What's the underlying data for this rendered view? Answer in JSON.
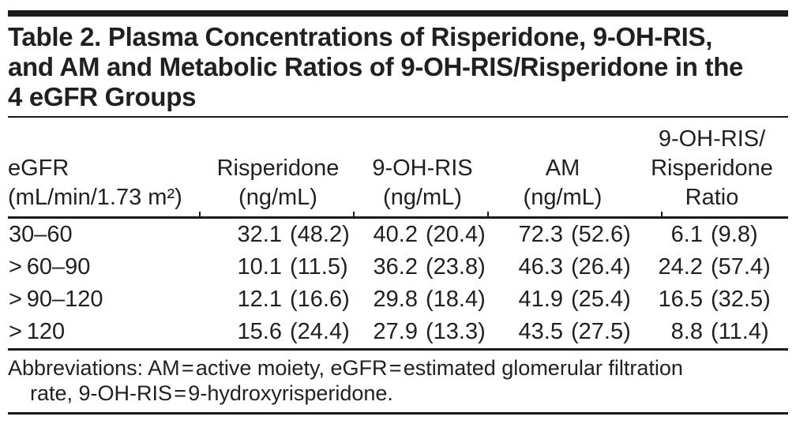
{
  "colors": {
    "background": "#ffffff",
    "text": "#231f20",
    "rule": "#1d1a19"
  },
  "title_lines": [
    "Table 2. Plasma Concentrations of Risperidone, 9-OH-RIS,",
    "and AM and Metabolic Ratios of 9-OH-RIS/Risperidone in the",
    "4 eGFR Groups"
  ],
  "table": {
    "columns": [
      {
        "header_lines": [
          "eGFR",
          "(mL/min/1.73 m²)"
        ]
      },
      {
        "header_lines": [
          "Risperidone",
          "(ng/mL)"
        ]
      },
      {
        "header_lines": [
          "9-OH-RIS",
          "(ng/mL)"
        ]
      },
      {
        "header_lines": [
          "AM",
          "(ng/mL)"
        ]
      },
      {
        "header_lines": [
          "9-OH-RIS/",
          "Risperidone",
          "Ratio"
        ]
      }
    ],
    "rows": [
      {
        "egfr": "30–60",
        "values": [
          {
            "mean": "32.1",
            "sd": "(48.2)"
          },
          {
            "mean": "40.2",
            "sd": "(20.4)"
          },
          {
            "mean": "72.3",
            "sd": "(52.6)"
          },
          {
            "mean": "6.1",
            "sd": "(9.8)"
          }
        ]
      },
      {
        "egfr": "> 60–90",
        "values": [
          {
            "mean": "10.1",
            "sd": "(11.5)"
          },
          {
            "mean": "36.2",
            "sd": "(23.8)"
          },
          {
            "mean": "46.3",
            "sd": "(26.4)"
          },
          {
            "mean": "24.2",
            "sd": "(57.4)"
          }
        ]
      },
      {
        "egfr": "> 90–120",
        "values": [
          {
            "mean": "12.1",
            "sd": "(16.6)"
          },
          {
            "mean": "29.8",
            "sd": "(18.4)"
          },
          {
            "mean": "41.9",
            "sd": "(25.4)"
          },
          {
            "mean": "16.5",
            "sd": "(32.5)"
          }
        ]
      },
      {
        "egfr": "> 120",
        "values": [
          {
            "mean": "15.6",
            "sd": "(24.4)"
          },
          {
            "mean": "27.9",
            "sd": "(13.3)"
          },
          {
            "mean": "43.5",
            "sd": "(27.5)"
          },
          {
            "mean": "8.8",
            "sd": "(11.4)"
          }
        ]
      }
    ]
  },
  "footnote_lines": [
    "Abbreviations: AM = active moiety, eGFR = estimated glomerular filtration",
    "rate, 9-OH-RIS = 9-hydroxyrisperidone."
  ]
}
